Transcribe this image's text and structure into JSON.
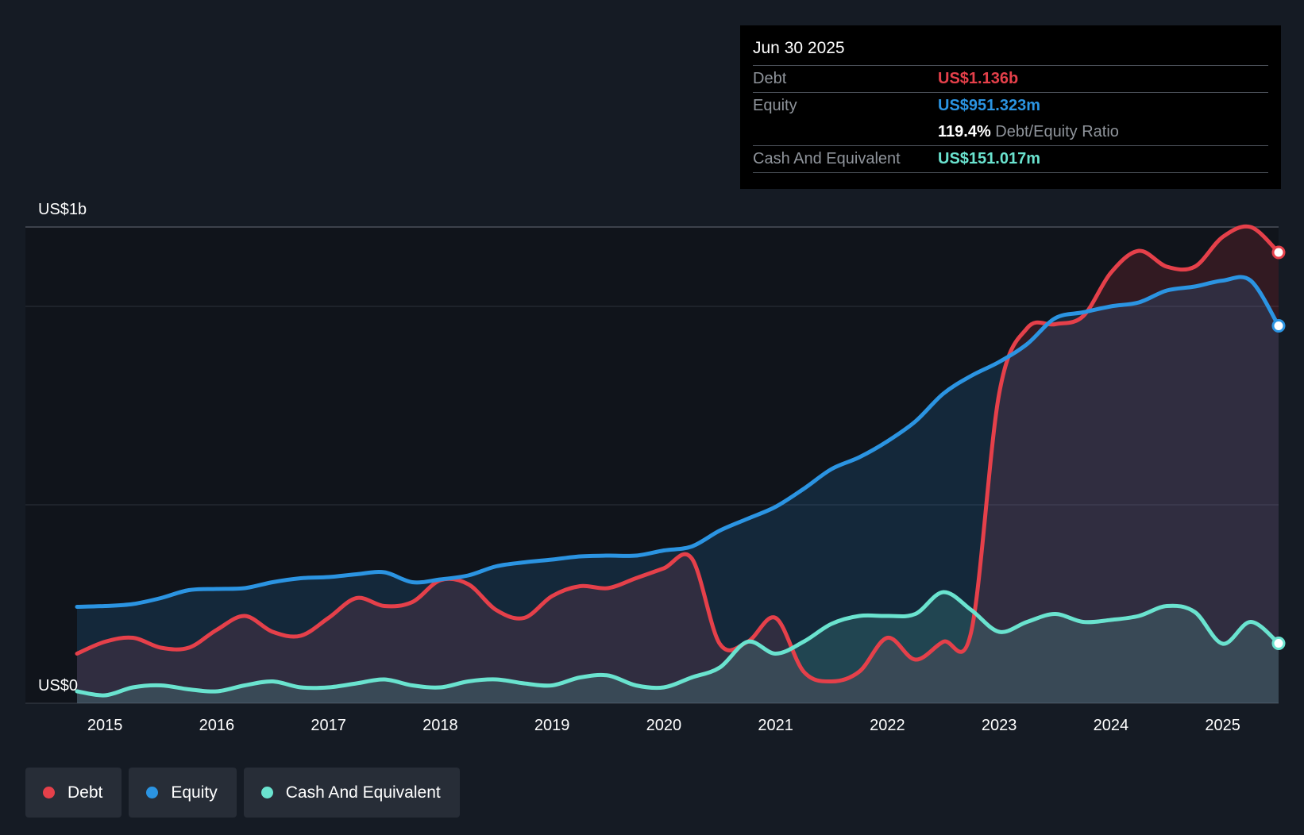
{
  "tooltip": {
    "date": "Jun 30 2025",
    "debt_label": "Debt",
    "debt_value": "US$1.136b",
    "equity_label": "Equity",
    "equity_value": "US$951.323m",
    "ratio_value": "119.4%",
    "ratio_label": "Debt/Equity Ratio",
    "cash_label": "Cash And Equivalent",
    "cash_value": "US$151.017m"
  },
  "legend": [
    {
      "label": "Debt",
      "color": "#e5404a"
    },
    {
      "label": "Equity",
      "color": "#2b94e2"
    },
    {
      "label": "Cash And Equivalent",
      "color": "#6ae3cf"
    }
  ],
  "chart_data": {
    "type": "area",
    "y_top_label": "US$1b",
    "y_bottom_label": "US$0",
    "ylim": [
      0,
      1200
    ],
    "xlim": [
      2014.75,
      2025.5
    ],
    "x_ticks": [
      "2015",
      "2016",
      "2017",
      "2018",
      "2019",
      "2020",
      "2021",
      "2022",
      "2023",
      "2024",
      "2025"
    ],
    "gridlines": [
      0,
      500,
      1000,
      1200
    ],
    "grid": true,
    "series": [
      {
        "name": "Debt",
        "color": "#e5404a",
        "points": [
          [
            2014.75,
            125
          ],
          [
            2015.0,
            155
          ],
          [
            2015.25,
            165
          ],
          [
            2015.5,
            140
          ],
          [
            2015.75,
            140
          ],
          [
            2016.0,
            185
          ],
          [
            2016.25,
            220
          ],
          [
            2016.5,
            180
          ],
          [
            2016.75,
            170
          ],
          [
            2017.0,
            215
          ],
          [
            2017.25,
            265
          ],
          [
            2017.5,
            245
          ],
          [
            2017.75,
            255
          ],
          [
            2018.0,
            310
          ],
          [
            2018.25,
            300
          ],
          [
            2018.5,
            235
          ],
          [
            2018.75,
            215
          ],
          [
            2019.0,
            270
          ],
          [
            2019.25,
            295
          ],
          [
            2019.5,
            290
          ],
          [
            2019.75,
            315
          ],
          [
            2020.0,
            340
          ],
          [
            2020.25,
            365
          ],
          [
            2020.5,
            150
          ],
          [
            2020.75,
            155
          ],
          [
            2021.0,
            215
          ],
          [
            2021.25,
            80
          ],
          [
            2021.5,
            55
          ],
          [
            2021.75,
            80
          ],
          [
            2022.0,
            165
          ],
          [
            2022.25,
            110
          ],
          [
            2022.5,
            155
          ],
          [
            2022.75,
            180
          ],
          [
            2023.0,
            780
          ],
          [
            2023.25,
            945
          ],
          [
            2023.5,
            955
          ],
          [
            2023.75,
            975
          ],
          [
            2024.0,
            1085
          ],
          [
            2024.25,
            1140
          ],
          [
            2024.5,
            1100
          ],
          [
            2024.75,
            1100
          ],
          [
            2025.0,
            1175
          ],
          [
            2025.25,
            1200
          ],
          [
            2025.5,
            1136
          ]
        ]
      },
      {
        "name": "Equity",
        "color": "#2b94e2",
        "points": [
          [
            2014.75,
            243
          ],
          [
            2015.0,
            245
          ],
          [
            2015.25,
            250
          ],
          [
            2015.5,
            265
          ],
          [
            2015.75,
            285
          ],
          [
            2016.0,
            288
          ],
          [
            2016.25,
            290
          ],
          [
            2016.5,
            305
          ],
          [
            2016.75,
            315
          ],
          [
            2017.0,
            318
          ],
          [
            2017.25,
            325
          ],
          [
            2017.5,
            330
          ],
          [
            2017.75,
            305
          ],
          [
            2018.0,
            312
          ],
          [
            2018.25,
            322
          ],
          [
            2018.5,
            345
          ],
          [
            2018.75,
            355
          ],
          [
            2019.0,
            362
          ],
          [
            2019.25,
            370
          ],
          [
            2019.5,
            372
          ],
          [
            2019.75,
            372
          ],
          [
            2020.0,
            385
          ],
          [
            2020.25,
            395
          ],
          [
            2020.5,
            435
          ],
          [
            2020.75,
            465
          ],
          [
            2021.0,
            495
          ],
          [
            2021.25,
            540
          ],
          [
            2021.5,
            590
          ],
          [
            2021.75,
            620
          ],
          [
            2022.0,
            660
          ],
          [
            2022.25,
            710
          ],
          [
            2022.5,
            780
          ],
          [
            2022.75,
            825
          ],
          [
            2023.0,
            860
          ],
          [
            2023.25,
            905
          ],
          [
            2023.5,
            970
          ],
          [
            2023.75,
            985
          ],
          [
            2024.0,
            1000
          ],
          [
            2024.25,
            1010
          ],
          [
            2024.5,
            1040
          ],
          [
            2024.75,
            1050
          ],
          [
            2025.0,
            1065
          ],
          [
            2025.25,
            1065
          ],
          [
            2025.5,
            951
          ]
        ]
      },
      {
        "name": "Cash And Equivalent",
        "color": "#6ae3cf",
        "points": [
          [
            2014.75,
            30
          ],
          [
            2015.0,
            20
          ],
          [
            2015.25,
            40
          ],
          [
            2015.5,
            45
          ],
          [
            2015.75,
            35
          ],
          [
            2016.0,
            30
          ],
          [
            2016.25,
            45
          ],
          [
            2016.5,
            55
          ],
          [
            2016.75,
            40
          ],
          [
            2017.0,
            40
          ],
          [
            2017.25,
            50
          ],
          [
            2017.5,
            60
          ],
          [
            2017.75,
            45
          ],
          [
            2018.0,
            40
          ],
          [
            2018.25,
            55
          ],
          [
            2018.5,
            60
          ],
          [
            2018.75,
            50
          ],
          [
            2019.0,
            45
          ],
          [
            2019.25,
            65
          ],
          [
            2019.5,
            70
          ],
          [
            2019.75,
            45
          ],
          [
            2020.0,
            40
          ],
          [
            2020.25,
            65
          ],
          [
            2020.5,
            90
          ],
          [
            2020.75,
            155
          ],
          [
            2021.0,
            125
          ],
          [
            2021.25,
            155
          ],
          [
            2021.5,
            200
          ],
          [
            2021.75,
            220
          ],
          [
            2022.0,
            220
          ],
          [
            2022.25,
            225
          ],
          [
            2022.5,
            280
          ],
          [
            2022.75,
            235
          ],
          [
            2023.0,
            180
          ],
          [
            2023.25,
            205
          ],
          [
            2023.5,
            225
          ],
          [
            2023.75,
            205
          ],
          [
            2024.0,
            210
          ],
          [
            2024.25,
            220
          ],
          [
            2024.5,
            245
          ],
          [
            2024.75,
            230
          ],
          [
            2025.0,
            150
          ],
          [
            2025.25,
            205
          ],
          [
            2025.5,
            151
          ]
        ]
      }
    ]
  }
}
